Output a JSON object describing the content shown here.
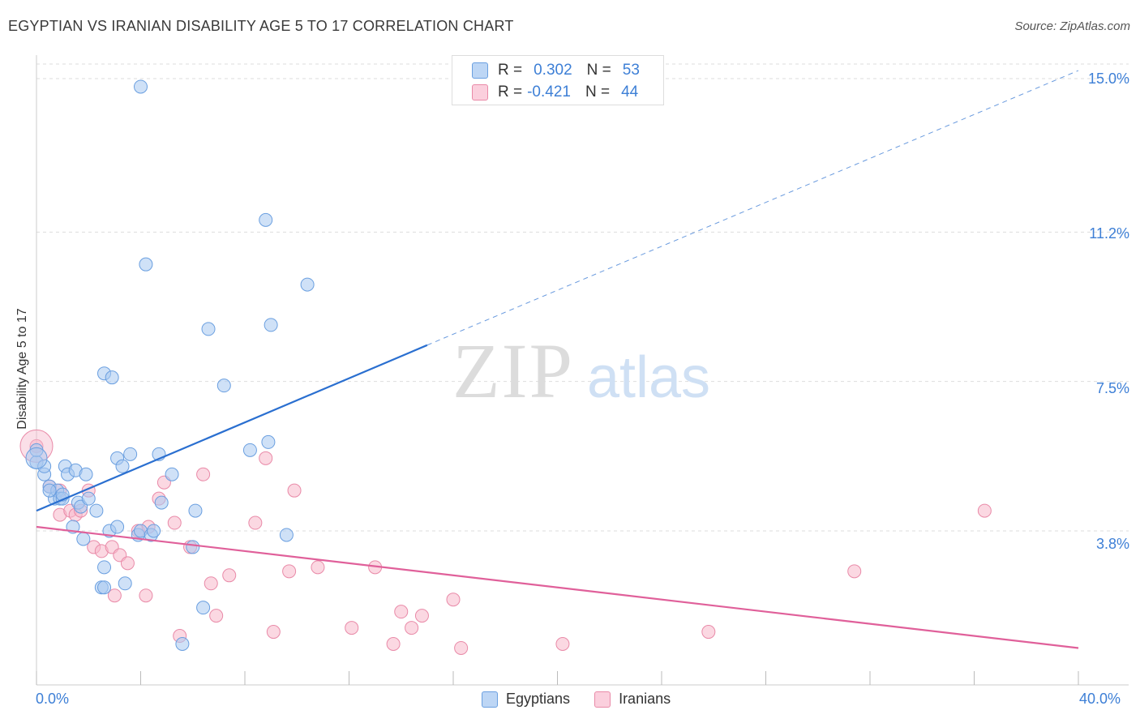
{
  "title": "EGYPTIAN VS IRANIAN DISABILITY AGE 5 TO 17 CORRELATION CHART",
  "source": "Source: ZipAtlas.com",
  "watermark": {
    "zip": "ZIP",
    "atlas": "atlas"
  },
  "legend": {
    "egyptians": {
      "r_label": "R =",
      "r_value": "0.302",
      "n_label": "N =",
      "n_value": "53"
    },
    "iranians": {
      "r_label": "R =",
      "r_value": "-0.421",
      "n_label": "N =",
      "n_value": "44"
    }
  },
  "bottom_legend": {
    "egyptians": "Egyptians",
    "iranians": "Iranians"
  },
  "x_ticks": {
    "min": "0.0%",
    "max": "40.0%"
  },
  "y_ticks": [
    "15.0%",
    "11.2%",
    "7.5%",
    "3.8%"
  ],
  "colors": {
    "egyptians_fill": "#a8c8f0",
    "egyptians_stroke": "#6a9fe0",
    "egyptians_line": "#2a6fd0",
    "iranians_fill": "#f7b8cb",
    "iranians_stroke": "#e98aa8",
    "iranians_line": "#e0609a",
    "tick_text": "#3d7fd6",
    "grid": "#dddddd"
  },
  "chart_data": {
    "type": "scatter",
    "title": "EGYPTIAN VS IRANIAN DISABILITY AGE 5 TO 17 CORRELATION CHART",
    "xlabel": "",
    "ylabel": "Disability Age 5 to 17",
    "xlim": [
      0,
      40
    ],
    "ylim": [
      0,
      15.5
    ],
    "y_gridlines": [
      3.8,
      7.5,
      11.2,
      15.0
    ],
    "grid": true,
    "legend_position": "top-center",
    "series": [
      {
        "name": "Egyptians",
        "r": 0.302,
        "n": 53,
        "trend": {
          "x": [
            0,
            15
          ],
          "y": [
            4.3,
            8.4
          ],
          "extended_to": [
            40,
            15.2
          ]
        },
        "points": [
          [
            0,
            5.5
          ],
          [
            0,
            5.8
          ],
          [
            0.3,
            5.2
          ],
          [
            0.5,
            4.9
          ],
          [
            0.7,
            4.6
          ],
          [
            0.8,
            4.8
          ],
          [
            0.9,
            4.6
          ],
          [
            1.0,
            4.6
          ],
          [
            1.1,
            5.4
          ],
          [
            1.2,
            5.2
          ],
          [
            1.5,
            5.3
          ],
          [
            1.6,
            4.5
          ],
          [
            1.7,
            4.4
          ],
          [
            1.4,
            3.9
          ],
          [
            1.8,
            3.6
          ],
          [
            1.9,
            5.2
          ],
          [
            2.0,
            4.6
          ],
          [
            2.3,
            4.3
          ],
          [
            2.5,
            2.4
          ],
          [
            2.6,
            2.4
          ],
          [
            2.6,
            2.9
          ],
          [
            2.8,
            3.8
          ],
          [
            2.6,
            7.7
          ],
          [
            2.9,
            7.6
          ],
          [
            3.1,
            3.9
          ],
          [
            3.1,
            5.6
          ],
          [
            3.3,
            5.4
          ],
          [
            3.4,
            2.5
          ],
          [
            3.6,
            5.7
          ],
          [
            3.9,
            3.7
          ],
          [
            4.0,
            3.8
          ],
          [
            4.0,
            14.8
          ],
          [
            4.2,
            10.4
          ],
          [
            4.4,
            3.7
          ],
          [
            4.5,
            3.8
          ],
          [
            4.7,
            5.7
          ],
          [
            4.8,
            4.5
          ],
          [
            5.2,
            5.2
          ],
          [
            5.6,
            1.0
          ],
          [
            6.0,
            3.4
          ],
          [
            6.1,
            4.3
          ],
          [
            6.4,
            1.9
          ],
          [
            6.6,
            8.8
          ],
          [
            7.2,
            7.4
          ],
          [
            8.2,
            5.8
          ],
          [
            8.8,
            11.5
          ],
          [
            8.9,
            6.0
          ],
          [
            9.0,
            8.9
          ],
          [
            9.6,
            3.7
          ],
          [
            10.4,
            9.9
          ],
          [
            0.5,
            4.8
          ],
          [
            1.0,
            4.7
          ],
          [
            0.3,
            5.4
          ]
        ]
      },
      {
        "name": "Iranians",
        "r": -0.421,
        "n": 44,
        "trend": {
          "x": [
            0,
            40
          ],
          "y": [
            3.9,
            0.9
          ]
        },
        "points": [
          [
            0,
            5.9
          ],
          [
            0.5,
            4.9
          ],
          [
            0.9,
            4.8
          ],
          [
            0.9,
            4.2
          ],
          [
            1.3,
            4.3
          ],
          [
            1.5,
            4.2
          ],
          [
            1.7,
            4.3
          ],
          [
            2.0,
            4.8
          ],
          [
            2.2,
            3.4
          ],
          [
            2.5,
            3.3
          ],
          [
            2.9,
            3.4
          ],
          [
            3.0,
            2.2
          ],
          [
            3.2,
            3.2
          ],
          [
            3.5,
            3.0
          ],
          [
            3.9,
            3.8
          ],
          [
            4.2,
            2.2
          ],
          [
            4.3,
            3.9
          ],
          [
            4.7,
            4.6
          ],
          [
            4.9,
            5.0
          ],
          [
            5.3,
            4.0
          ],
          [
            5.5,
            1.2
          ],
          [
            5.9,
            3.4
          ],
          [
            6.4,
            5.2
          ],
          [
            6.7,
            2.5
          ],
          [
            6.9,
            1.7
          ],
          [
            7.4,
            2.7
          ],
          [
            8.4,
            4.0
          ],
          [
            8.8,
            5.6
          ],
          [
            9.1,
            1.3
          ],
          [
            9.7,
            2.8
          ],
          [
            9.9,
            4.8
          ],
          [
            10.8,
            2.9
          ],
          [
            12.1,
            1.4
          ],
          [
            13.0,
            2.9
          ],
          [
            13.7,
            1.0
          ],
          [
            14.0,
            1.8
          ],
          [
            14.4,
            1.4
          ],
          [
            14.8,
            1.7
          ],
          [
            16.0,
            2.1
          ],
          [
            16.3,
            0.9
          ],
          [
            20.2,
            1.0
          ],
          [
            25.8,
            1.3
          ],
          [
            31.4,
            2.8
          ],
          [
            36.4,
            4.3
          ]
        ]
      }
    ]
  }
}
